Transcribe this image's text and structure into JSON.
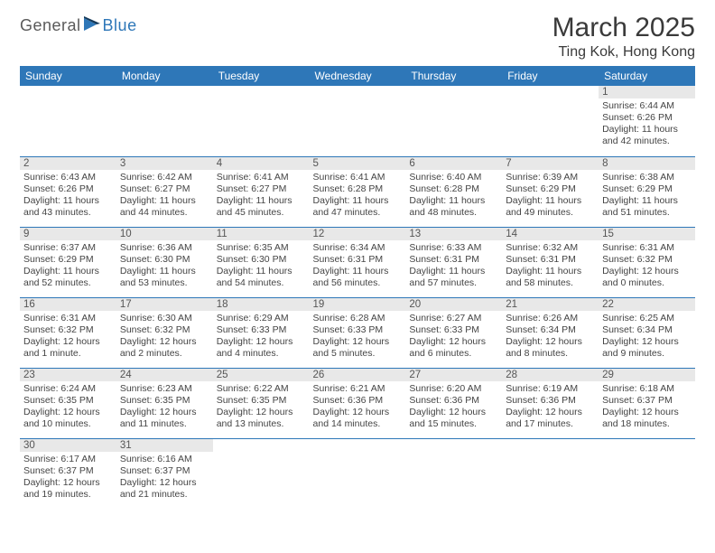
{
  "logo": {
    "part1": "General",
    "part2": "Blue"
  },
  "title": "March 2025",
  "subtitle": "Ting Kok, Hong Kong",
  "colors": {
    "header_bg": "#2e77b8",
    "header_fg": "#ffffff",
    "daynum_bg": "#e8e8e8",
    "rule": "#2e77b8",
    "text": "#333333"
  },
  "day_names": [
    "Sunday",
    "Monday",
    "Tuesday",
    "Wednesday",
    "Thursday",
    "Friday",
    "Saturday"
  ],
  "weeks": [
    [
      {
        "n": "",
        "sr": "",
        "ss": "",
        "d": ""
      },
      {
        "n": "",
        "sr": "",
        "ss": "",
        "d": ""
      },
      {
        "n": "",
        "sr": "",
        "ss": "",
        "d": ""
      },
      {
        "n": "",
        "sr": "",
        "ss": "",
        "d": ""
      },
      {
        "n": "",
        "sr": "",
        "ss": "",
        "d": ""
      },
      {
        "n": "",
        "sr": "",
        "ss": "",
        "d": ""
      },
      {
        "n": "1",
        "sr": "Sunrise: 6:44 AM",
        "ss": "Sunset: 6:26 PM",
        "d": "Daylight: 11 hours and 42 minutes."
      }
    ],
    [
      {
        "n": "2",
        "sr": "Sunrise: 6:43 AM",
        "ss": "Sunset: 6:26 PM",
        "d": "Daylight: 11 hours and 43 minutes."
      },
      {
        "n": "3",
        "sr": "Sunrise: 6:42 AM",
        "ss": "Sunset: 6:27 PM",
        "d": "Daylight: 11 hours and 44 minutes."
      },
      {
        "n": "4",
        "sr": "Sunrise: 6:41 AM",
        "ss": "Sunset: 6:27 PM",
        "d": "Daylight: 11 hours and 45 minutes."
      },
      {
        "n": "5",
        "sr": "Sunrise: 6:41 AM",
        "ss": "Sunset: 6:28 PM",
        "d": "Daylight: 11 hours and 47 minutes."
      },
      {
        "n": "6",
        "sr": "Sunrise: 6:40 AM",
        "ss": "Sunset: 6:28 PM",
        "d": "Daylight: 11 hours and 48 minutes."
      },
      {
        "n": "7",
        "sr": "Sunrise: 6:39 AM",
        "ss": "Sunset: 6:29 PM",
        "d": "Daylight: 11 hours and 49 minutes."
      },
      {
        "n": "8",
        "sr": "Sunrise: 6:38 AM",
        "ss": "Sunset: 6:29 PM",
        "d": "Daylight: 11 hours and 51 minutes."
      }
    ],
    [
      {
        "n": "9",
        "sr": "Sunrise: 6:37 AM",
        "ss": "Sunset: 6:29 PM",
        "d": "Daylight: 11 hours and 52 minutes."
      },
      {
        "n": "10",
        "sr": "Sunrise: 6:36 AM",
        "ss": "Sunset: 6:30 PM",
        "d": "Daylight: 11 hours and 53 minutes."
      },
      {
        "n": "11",
        "sr": "Sunrise: 6:35 AM",
        "ss": "Sunset: 6:30 PM",
        "d": "Daylight: 11 hours and 54 minutes."
      },
      {
        "n": "12",
        "sr": "Sunrise: 6:34 AM",
        "ss": "Sunset: 6:31 PM",
        "d": "Daylight: 11 hours and 56 minutes."
      },
      {
        "n": "13",
        "sr": "Sunrise: 6:33 AM",
        "ss": "Sunset: 6:31 PM",
        "d": "Daylight: 11 hours and 57 minutes."
      },
      {
        "n": "14",
        "sr": "Sunrise: 6:32 AM",
        "ss": "Sunset: 6:31 PM",
        "d": "Daylight: 11 hours and 58 minutes."
      },
      {
        "n": "15",
        "sr": "Sunrise: 6:31 AM",
        "ss": "Sunset: 6:32 PM",
        "d": "Daylight: 12 hours and 0 minutes."
      }
    ],
    [
      {
        "n": "16",
        "sr": "Sunrise: 6:31 AM",
        "ss": "Sunset: 6:32 PM",
        "d": "Daylight: 12 hours and 1 minute."
      },
      {
        "n": "17",
        "sr": "Sunrise: 6:30 AM",
        "ss": "Sunset: 6:32 PM",
        "d": "Daylight: 12 hours and 2 minutes."
      },
      {
        "n": "18",
        "sr": "Sunrise: 6:29 AM",
        "ss": "Sunset: 6:33 PM",
        "d": "Daylight: 12 hours and 4 minutes."
      },
      {
        "n": "19",
        "sr": "Sunrise: 6:28 AM",
        "ss": "Sunset: 6:33 PM",
        "d": "Daylight: 12 hours and 5 minutes."
      },
      {
        "n": "20",
        "sr": "Sunrise: 6:27 AM",
        "ss": "Sunset: 6:33 PM",
        "d": "Daylight: 12 hours and 6 minutes."
      },
      {
        "n": "21",
        "sr": "Sunrise: 6:26 AM",
        "ss": "Sunset: 6:34 PM",
        "d": "Daylight: 12 hours and 8 minutes."
      },
      {
        "n": "22",
        "sr": "Sunrise: 6:25 AM",
        "ss": "Sunset: 6:34 PM",
        "d": "Daylight: 12 hours and 9 minutes."
      }
    ],
    [
      {
        "n": "23",
        "sr": "Sunrise: 6:24 AM",
        "ss": "Sunset: 6:35 PM",
        "d": "Daylight: 12 hours and 10 minutes."
      },
      {
        "n": "24",
        "sr": "Sunrise: 6:23 AM",
        "ss": "Sunset: 6:35 PM",
        "d": "Daylight: 12 hours and 11 minutes."
      },
      {
        "n": "25",
        "sr": "Sunrise: 6:22 AM",
        "ss": "Sunset: 6:35 PM",
        "d": "Daylight: 12 hours and 13 minutes."
      },
      {
        "n": "26",
        "sr": "Sunrise: 6:21 AM",
        "ss": "Sunset: 6:36 PM",
        "d": "Daylight: 12 hours and 14 minutes."
      },
      {
        "n": "27",
        "sr": "Sunrise: 6:20 AM",
        "ss": "Sunset: 6:36 PM",
        "d": "Daylight: 12 hours and 15 minutes."
      },
      {
        "n": "28",
        "sr": "Sunrise: 6:19 AM",
        "ss": "Sunset: 6:36 PM",
        "d": "Daylight: 12 hours and 17 minutes."
      },
      {
        "n": "29",
        "sr": "Sunrise: 6:18 AM",
        "ss": "Sunset: 6:37 PM",
        "d": "Daylight: 12 hours and 18 minutes."
      }
    ],
    [
      {
        "n": "30",
        "sr": "Sunrise: 6:17 AM",
        "ss": "Sunset: 6:37 PM",
        "d": "Daylight: 12 hours and 19 minutes."
      },
      {
        "n": "31",
        "sr": "Sunrise: 6:16 AM",
        "ss": "Sunset: 6:37 PM",
        "d": "Daylight: 12 hours and 21 minutes."
      },
      {
        "n": "",
        "sr": "",
        "ss": "",
        "d": ""
      },
      {
        "n": "",
        "sr": "",
        "ss": "",
        "d": ""
      },
      {
        "n": "",
        "sr": "",
        "ss": "",
        "d": ""
      },
      {
        "n": "",
        "sr": "",
        "ss": "",
        "d": ""
      },
      {
        "n": "",
        "sr": "",
        "ss": "",
        "d": ""
      }
    ]
  ]
}
